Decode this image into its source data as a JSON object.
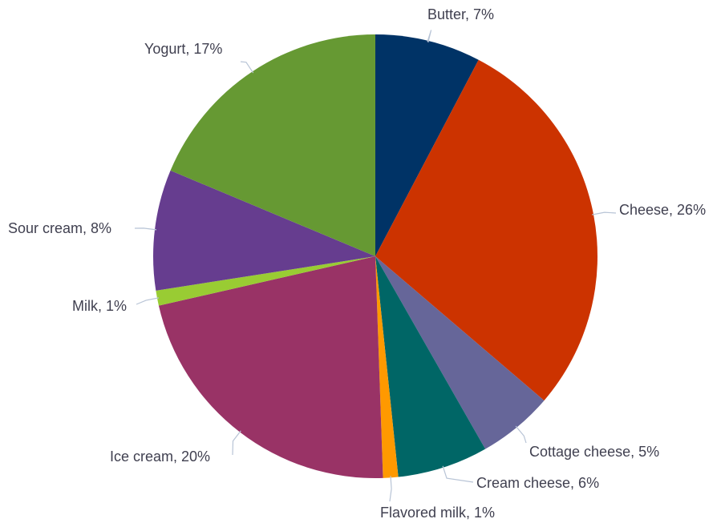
{
  "chart_data": {
    "type": "pie",
    "title": "",
    "start": "top",
    "direction": "clockwise",
    "slices": [
      {
        "name": "Butter",
        "value": 7,
        "label": "Butter, 7%",
        "color": "#003366"
      },
      {
        "name": "Cheese",
        "value": 26,
        "label": "Cheese, 26%",
        "color": "#cc3300"
      },
      {
        "name": "Cottage cheese",
        "value": 5,
        "label": "Cottage cheese, 5%",
        "color": "#666699"
      },
      {
        "name": "Cream cheese",
        "value": 6,
        "label": "Cream cheese, 6%",
        "color": "#006666"
      },
      {
        "name": "Flavored milk",
        "value": 1,
        "label": "Flavored milk, 1%",
        "color": "#ff9900"
      },
      {
        "name": "Ice cream",
        "value": 20,
        "label": "Ice cream, 20%",
        "color": "#993366"
      },
      {
        "name": "Milk",
        "value": 1,
        "label": "Milk, 1%",
        "color": "#99cc33"
      },
      {
        "name": "Sour cream",
        "value": 8,
        "label": "Sour cream, 8%",
        "color": "#663d8f"
      },
      {
        "name": "Yogurt",
        "value": 17,
        "label": "Yogurt, 17%",
        "color": "#669933"
      }
    ]
  }
}
